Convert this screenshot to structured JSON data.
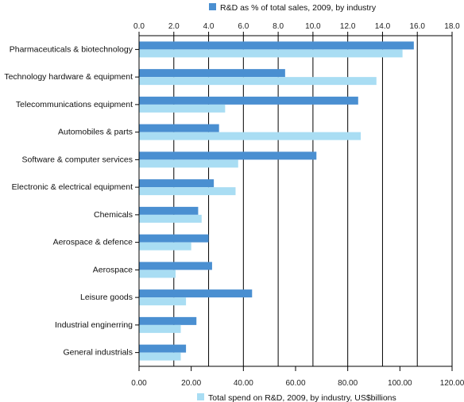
{
  "chart_data": {
    "type": "bar",
    "orientation": "horizontal",
    "grid": true,
    "categories": [
      "Pharmaceuticals & biotechnology",
      "Technology hardware & equipment",
      "Telecommunications equipment",
      "Automobiles & parts",
      "Software & computer services",
      "Electronic & electrical equipment",
      "Chemicals",
      "Aerospace & defence",
      "Aerospace",
      "Leisure goods",
      "Industrial enginerring",
      "General industrials"
    ],
    "series": [
      {
        "name": "R&D as % of total sales, 2009, by industry",
        "axis": "top",
        "color": "#4a8fd1",
        "values": [
          15.8,
          8.4,
          12.6,
          4.6,
          10.2,
          4.3,
          3.4,
          4.0,
          4.2,
          6.5,
          3.3,
          2.7
        ]
      },
      {
        "name": "Total spend on R&D, 2009, by industry, US$billions",
        "axis": "bottom",
        "color": "#a9ddf3",
        "values": [
          101,
          91,
          33,
          85,
          38,
          37,
          24,
          20,
          14,
          18,
          16,
          16
        ]
      }
    ],
    "top_axis": {
      "range": [
        0,
        18
      ],
      "ticks": [
        "0.0",
        "2.0",
        "4.0",
        "6.0",
        "8.0",
        "10.0",
        "12.0",
        "14.0",
        "16.0",
        "18.0"
      ]
    },
    "bottom_axis": {
      "range": [
        0,
        120
      ],
      "ticks": [
        "0.00",
        "20.00",
        "40.00",
        "60.00",
        "80.00",
        "100.00",
        "120.00"
      ]
    },
    "legend": {
      "top": "R&D as % of total sales, 2009, by industry",
      "bottom": "Total spend on R&D, 2009, by industry, US$billions"
    }
  }
}
